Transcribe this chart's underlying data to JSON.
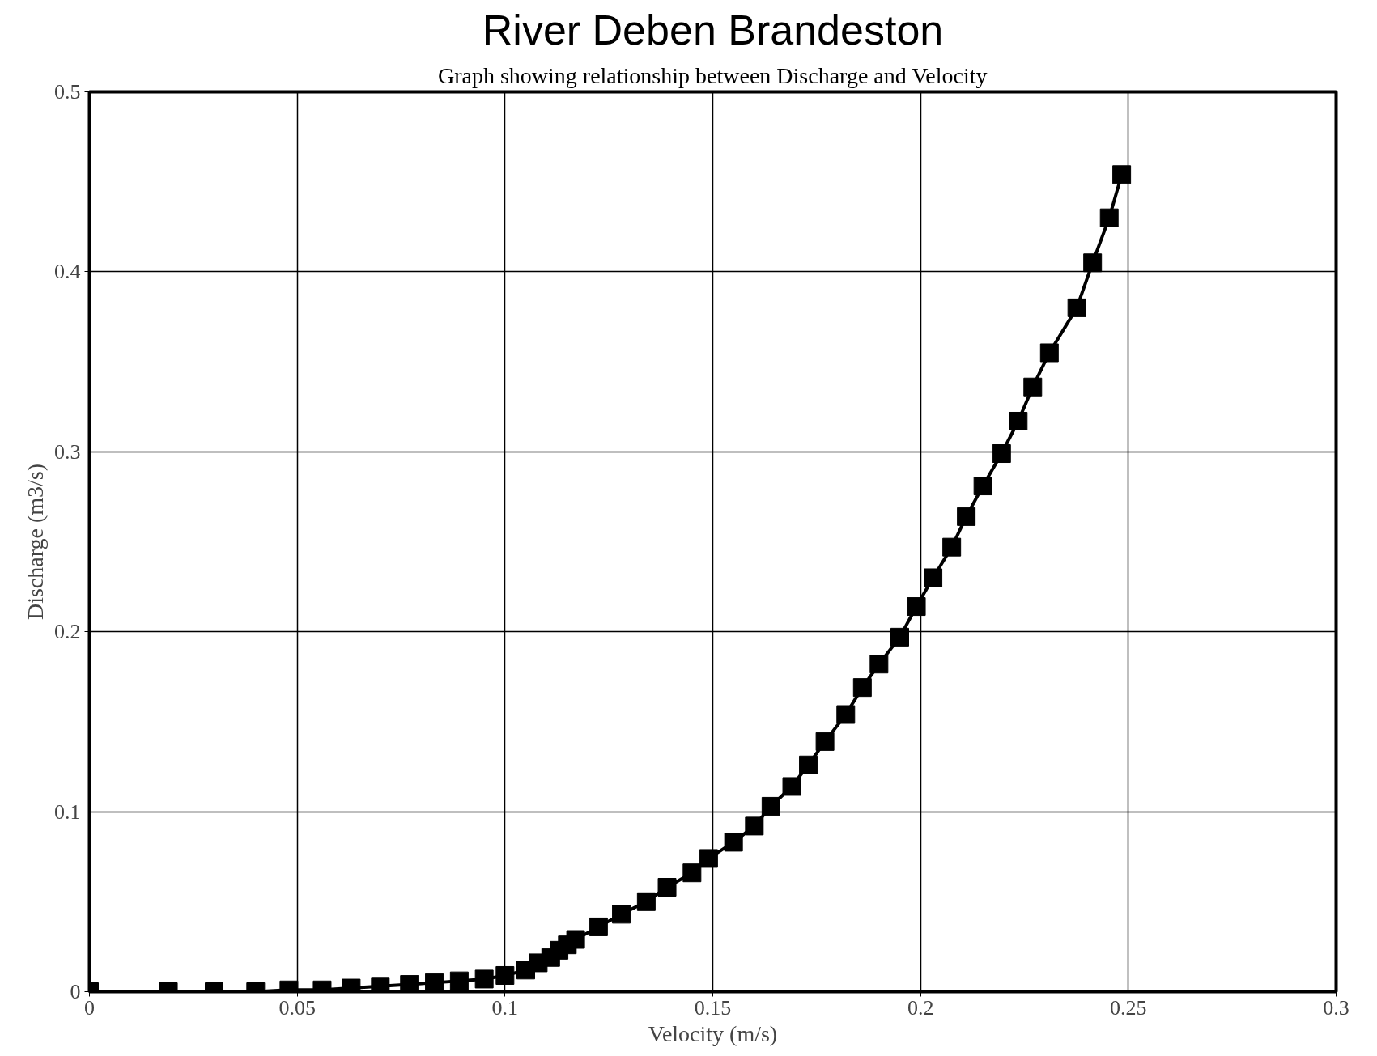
{
  "chart_data": {
    "type": "line",
    "title": "River Deben Brandeston",
    "subtitle": "Graph showing relationship between Discharge and Velocity",
    "xlabel": "Velocity (m/s)",
    "ylabel": "Discharge (m3/s)",
    "x": [
      0,
      0.019,
      0.03,
      0.04,
      0.048,
      0.056,
      0.063,
      0.07,
      0.077,
      0.083,
      0.089,
      0.095,
      0.1,
      0.105,
      0.108,
      0.111,
      0.113,
      0.115,
      0.117,
      0.1225,
      0.128,
      0.134,
      0.139,
      0.145,
      0.149,
      0.155,
      0.16,
      0.164,
      0.169,
      0.173,
      0.177,
      0.182,
      0.186,
      0.19,
      0.195,
      0.199,
      0.203,
      0.2075,
      0.211,
      0.215,
      0.2195,
      0.2235,
      0.227,
      0.231,
      0.2376,
      0.2414,
      0.2454,
      0.2484
    ],
    "series": [
      {
        "color": "#000000",
        "values": [
          0,
          0,
          0,
          0,
          0.001,
          0.001,
          0.002,
          0.003,
          0.004,
          0.005,
          0.006,
          0.007,
          0.009,
          0.012,
          0.016,
          0.019,
          0.023,
          0.026,
          0.029,
          0.036,
          0.043,
          0.05,
          0.058,
          0.066,
          0.074,
          0.083,
          0.092,
          0.103,
          0.114,
          0.126,
          0.139,
          0.154,
          0.169,
          0.182,
          0.197,
          0.214,
          0.23,
          0.247,
          0.264,
          0.281,
          0.299,
          0.317,
          0.336,
          0.355,
          0.38,
          0.405,
          0.43,
          0.454
        ]
      }
    ],
    "xlim": [
      0,
      0.3
    ],
    "ylim": [
      0,
      0.5
    ],
    "xticks": [
      0,
      0.05,
      0.1,
      0.15,
      0.2,
      0.25,
      0.3
    ],
    "yticks": [
      0,
      0.1,
      0.2,
      0.3,
      0.4,
      0.5
    ],
    "grid": true,
    "marker": "square",
    "line_style": "solid"
  }
}
